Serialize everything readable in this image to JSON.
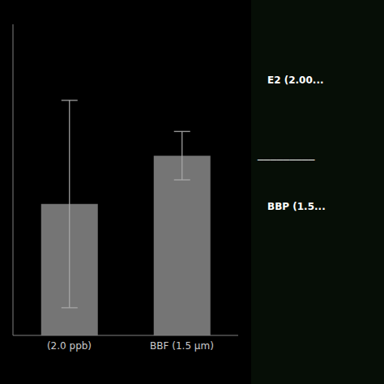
{
  "chart_data": {
    "type": "bar",
    "categories": [
      "(2.0 ppb)",
      "BBF (1.5 μm)"
    ],
    "values": [
      0.38,
      0.52
    ],
    "errors": [
      0.3,
      0.07
    ],
    "color": "#757575",
    "ylim": [
      0,
      0.9
    ],
    "tick_labels": "x",
    "grid": false,
    "annotations": [
      "E2 (2.00...",
      "─────────",
      "BBP (1.5..."
    ]
  }
}
